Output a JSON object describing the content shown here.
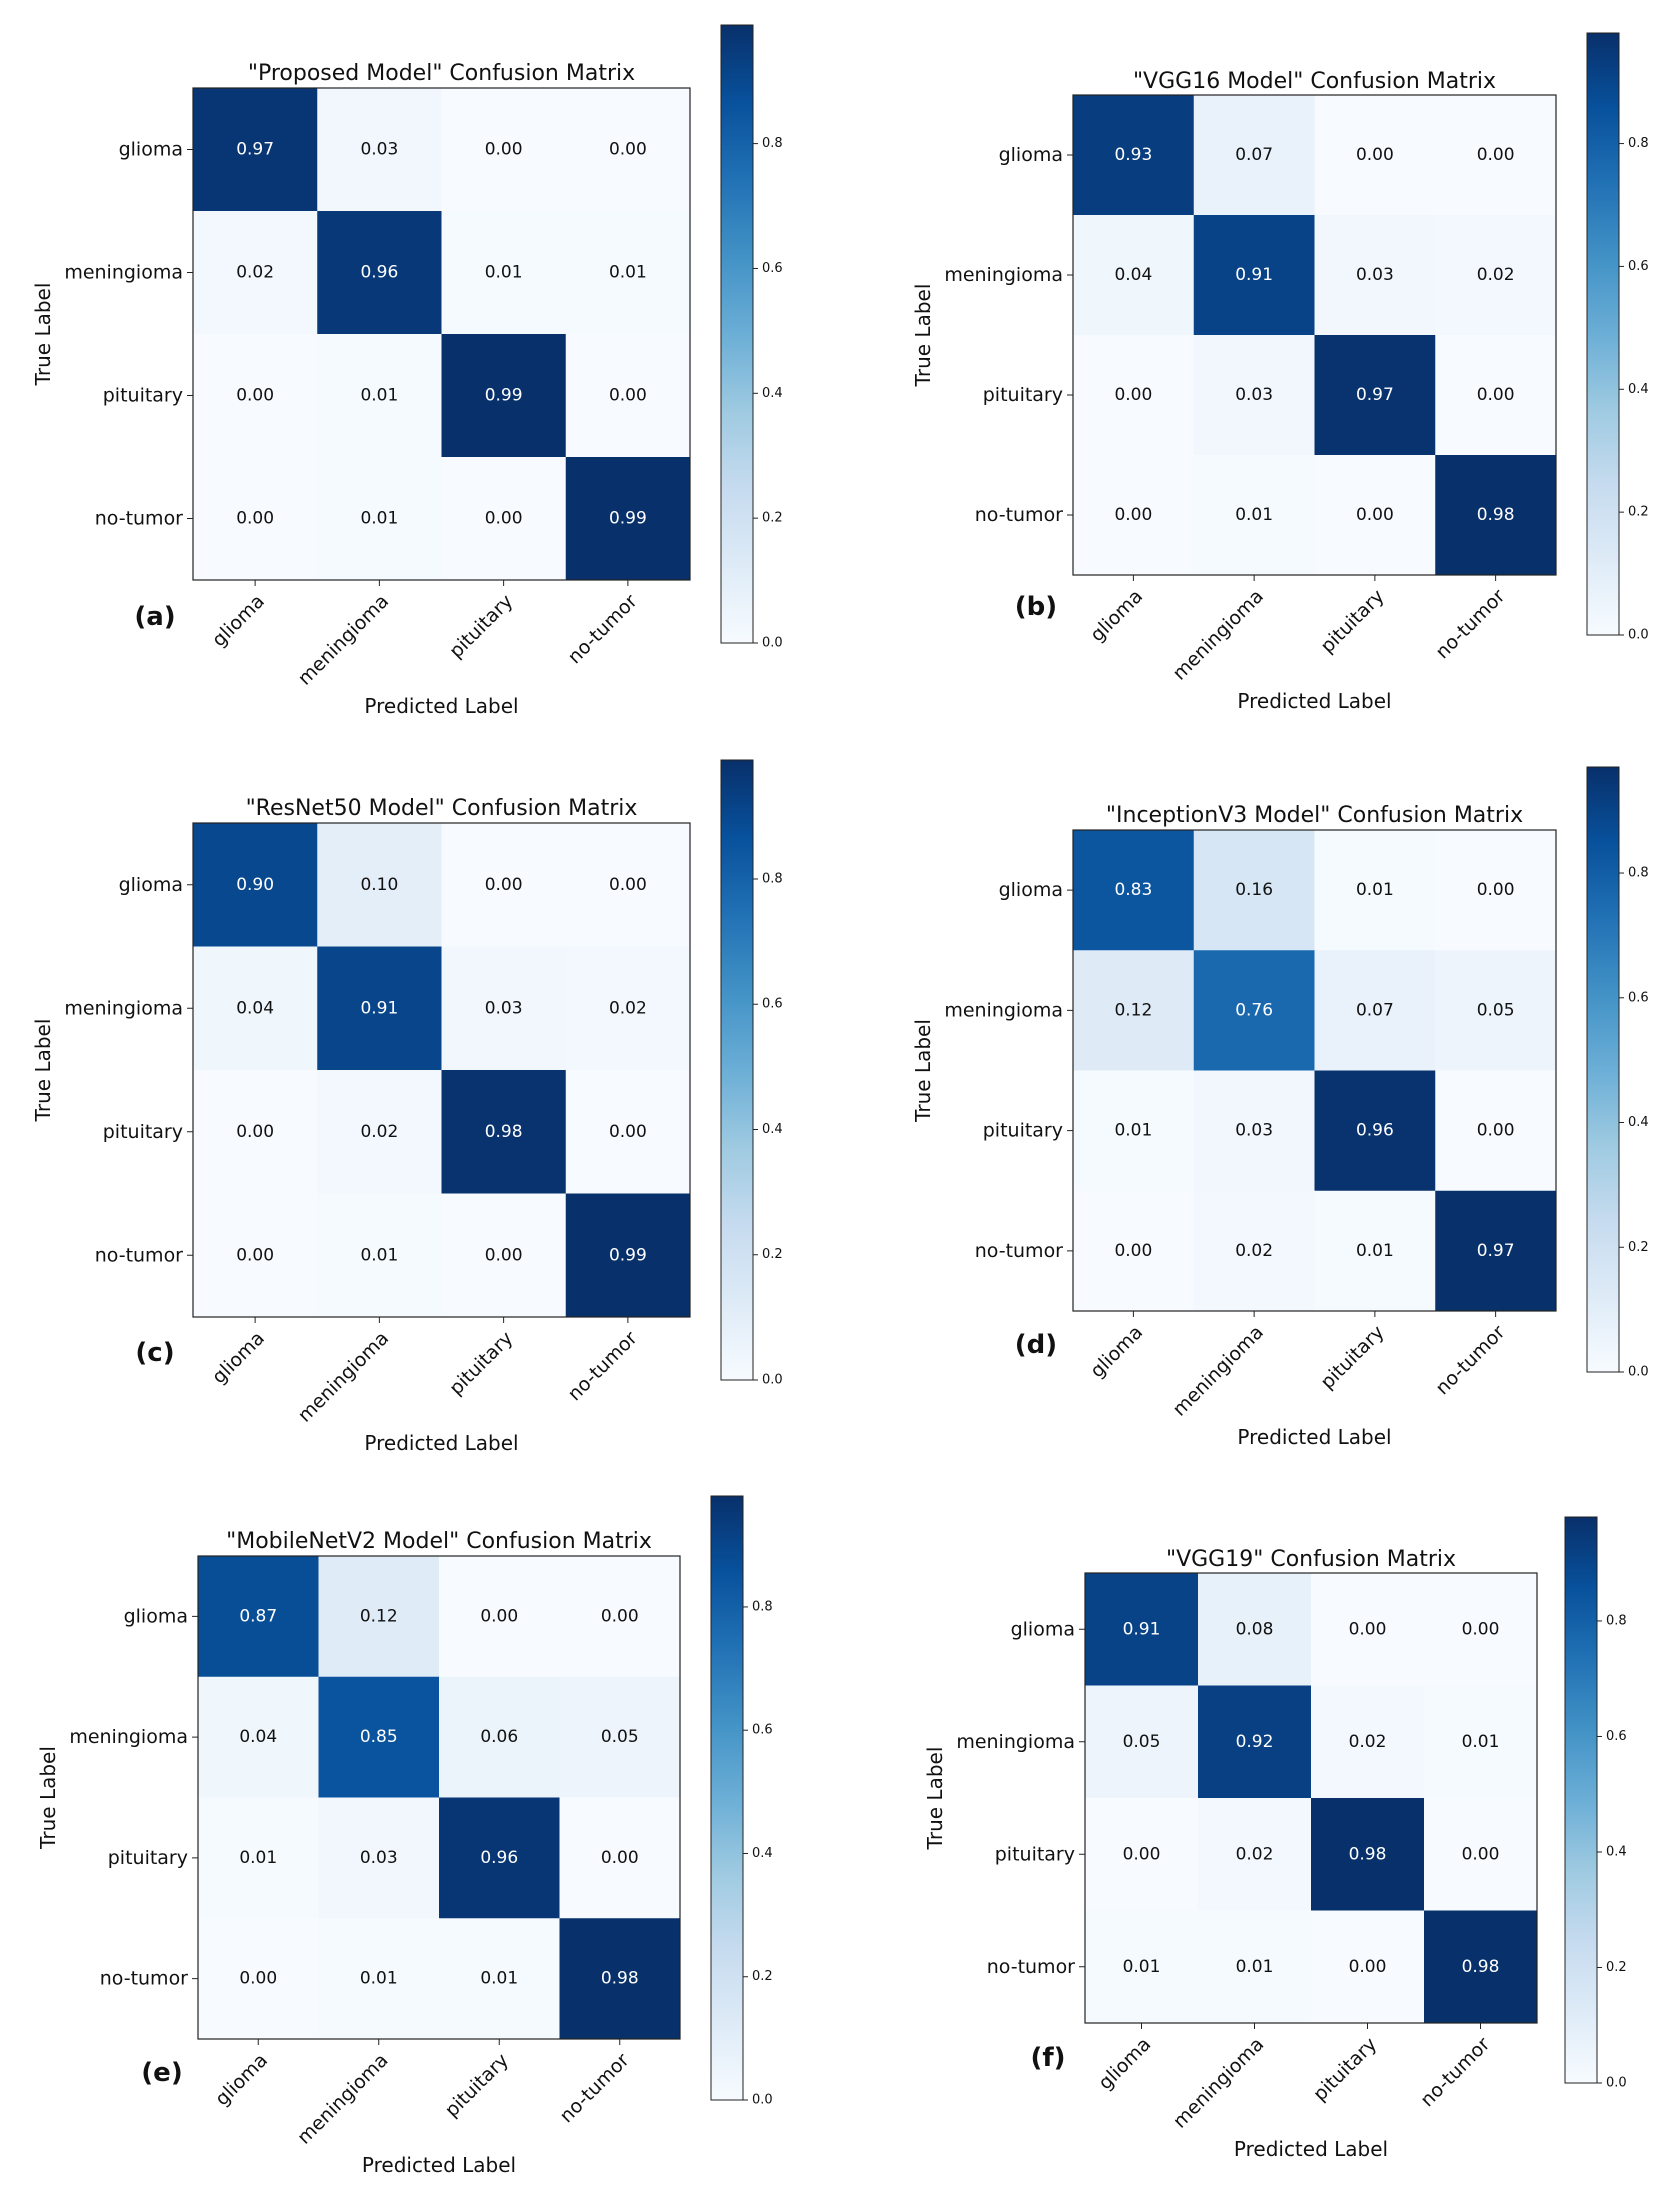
{
  "chart_data": [
    {
      "type": "heatmap",
      "panel": "(a)",
      "title": "\"Proposed Model\" Confusion Matrix",
      "xlabel": "Predicted Label",
      "ylabel": "True Label",
      "rows": [
        "glioma",
        "meningioma",
        "pituitary",
        "no-tumor"
      ],
      "columns": [
        "glioma",
        "meningioma",
        "pituitary",
        "no-tumor"
      ],
      "values": [
        [
          0.97,
          0.03,
          0.0,
          0.0
        ],
        [
          0.02,
          0.96,
          0.01,
          0.01
        ],
        [
          0.0,
          0.01,
          0.99,
          0.0
        ],
        [
          0.0,
          0.01,
          0.0,
          0.99
        ]
      ],
      "labels": [
        [
          "0.97",
          "0.03",
          "0.00",
          "0.00"
        ],
        [
          "0.02",
          "0.96",
          "0.01",
          "0.01"
        ],
        [
          "0.00",
          "0.01",
          "0.99",
          "0.00"
        ],
        [
          "0.00",
          "0.01",
          "0.00",
          "0.99"
        ]
      ],
      "colorbar": {
        "ticks": [
          0.0,
          0.2,
          0.4,
          0.6,
          0.8
        ],
        "tick_labels": [
          "0.0",
          "0.2",
          "0.4",
          "0.6",
          "0.8"
        ],
        "vmin": 0,
        "vmax": 0.99
      }
    },
    {
      "type": "heatmap",
      "panel": "(b)",
      "title": "\"VGG16 Model\" Confusion Matrix",
      "xlabel": "Predicted Label",
      "ylabel": "True Label",
      "rows": [
        "glioma",
        "meningioma",
        "pituitary",
        "no-tumor"
      ],
      "columns": [
        "glioma",
        "meningioma",
        "pituitary",
        "no-tumor"
      ],
      "values": [
        [
          0.93,
          0.07,
          0.0,
          0.0
        ],
        [
          0.04,
          0.91,
          0.03,
          0.02
        ],
        [
          0.0,
          0.03,
          0.97,
          0.0
        ],
        [
          0.0,
          0.01,
          0.0,
          0.98
        ]
      ],
      "labels": [
        [
          "0.93",
          "0.07",
          "0.00",
          "0.00"
        ],
        [
          "0.04",
          "0.91",
          "0.03",
          "0.02"
        ],
        [
          "0.00",
          "0.03",
          "0.97",
          "0.00"
        ],
        [
          "0.00",
          "0.01",
          "0.00",
          "0.98"
        ]
      ],
      "colorbar": {
        "ticks": [
          0.0,
          0.2,
          0.4,
          0.6,
          0.8
        ],
        "tick_labels": [
          "0.0",
          "0.2",
          "0.4",
          "0.6",
          "0.8"
        ],
        "vmin": 0,
        "vmax": 0.98
      }
    },
    {
      "type": "heatmap",
      "panel": "(c)",
      "title": "\"ResNet50 Model\" Confusion Matrix",
      "xlabel": "Predicted Label",
      "ylabel": "True Label",
      "rows": [
        "glioma",
        "meningioma",
        "pituitary",
        "no-tumor"
      ],
      "columns": [
        "glioma",
        "meningioma",
        "pituitary",
        "no-tumor"
      ],
      "values": [
        [
          0.9,
          0.1,
          0.0,
          0.0
        ],
        [
          0.04,
          0.91,
          0.03,
          0.02
        ],
        [
          0.0,
          0.02,
          0.98,
          0.0
        ],
        [
          0.0,
          0.01,
          0.0,
          0.99
        ]
      ],
      "labels": [
        [
          "0.90",
          "0.10",
          "0.00",
          "0.00"
        ],
        [
          "0.04",
          "0.91",
          "0.03",
          "0.02"
        ],
        [
          "0.00",
          "0.02",
          "0.98",
          "0.00"
        ],
        [
          "0.00",
          "0.01",
          "0.00",
          "0.99"
        ]
      ],
      "colorbar": {
        "ticks": [
          0.0,
          0.2,
          0.4,
          0.6,
          0.8
        ],
        "tick_labels": [
          "0.0",
          "0.2",
          "0.4",
          "0.6",
          "0.8"
        ],
        "vmin": 0,
        "vmax": 0.99
      }
    },
    {
      "type": "heatmap",
      "panel": "(d)",
      "title": "\"InceptionV3 Model\" Confusion Matrix",
      "xlabel": "Predicted Label",
      "ylabel": "True Label",
      "rows": [
        "glioma",
        "meningioma",
        "pituitary",
        "no-tumor"
      ],
      "columns": [
        "glioma",
        "meningioma",
        "pituitary",
        "no-tumor"
      ],
      "values": [
        [
          0.83,
          0.16,
          0.01,
          0.0
        ],
        [
          0.12,
          0.76,
          0.07,
          0.05
        ],
        [
          0.01,
          0.03,
          0.96,
          0.0
        ],
        [
          0.0,
          0.02,
          0.01,
          0.97
        ]
      ],
      "labels": [
        [
          "0.83",
          "0.16",
          "0.01",
          "0.00"
        ],
        [
          "0.12",
          "0.76",
          "0.07",
          "0.05"
        ],
        [
          "0.01",
          "0.03",
          "0.96",
          "0.00"
        ],
        [
          "0.00",
          "0.02",
          "0.01",
          "0.97"
        ]
      ],
      "colorbar": {
        "ticks": [
          0.0,
          0.2,
          0.4,
          0.6,
          0.8
        ],
        "tick_labels": [
          "0.0",
          "0.2",
          "0.4",
          "0.6",
          "0.8"
        ],
        "vmin": 0,
        "vmax": 0.97
      }
    },
    {
      "type": "heatmap",
      "panel": "(e)",
      "title": "\"MobileNetV2 Model\" Confusion Matrix",
      "xlabel": "Predicted Label",
      "ylabel": "True Label",
      "rows": [
        "glioma",
        "meningioma",
        "pituitary",
        "no-tumor"
      ],
      "columns": [
        "glioma",
        "meningioma",
        "pituitary",
        "no-tumor"
      ],
      "values": [
        [
          0.87,
          0.12,
          0.0,
          0.0
        ],
        [
          0.04,
          0.85,
          0.06,
          0.05
        ],
        [
          0.01,
          0.03,
          0.96,
          0.0
        ],
        [
          0.0,
          0.01,
          0.01,
          0.98
        ]
      ],
      "labels": [
        [
          "0.87",
          "0.12",
          "0.00",
          "0.00"
        ],
        [
          "0.04",
          "0.85",
          "0.06",
          "0.05"
        ],
        [
          "0.01",
          "0.03",
          "0.96",
          "0.00"
        ],
        [
          "0.00",
          "0.01",
          "0.01",
          "0.98"
        ]
      ],
      "colorbar": {
        "ticks": [
          0.0,
          0.2,
          0.4,
          0.6,
          0.8
        ],
        "tick_labels": [
          "0.0",
          "0.2",
          "0.4",
          "0.6",
          "0.8"
        ],
        "vmin": 0,
        "vmax": 0.98
      }
    },
    {
      "type": "heatmap",
      "panel": "(f)",
      "title": "\"VGG19\" Confusion Matrix",
      "xlabel": "Predicted Label",
      "ylabel": "True Label",
      "rows": [
        "glioma",
        "meningioma",
        "pituitary",
        "no-tumor"
      ],
      "columns": [
        "glioma",
        "meningioma",
        "pituitary",
        "no-tumor"
      ],
      "values": [
        [
          0.91,
          0.08,
          0.0,
          0.0
        ],
        [
          0.05,
          0.92,
          0.02,
          0.01
        ],
        [
          0.0,
          0.02,
          0.98,
          0.0
        ],
        [
          0.01,
          0.01,
          0.0,
          0.98
        ]
      ],
      "labels": [
        [
          "0.91",
          "0.08",
          "0.00",
          "0.00"
        ],
        [
          "0.05",
          "0.92",
          "0.02",
          "0.01"
        ],
        [
          "0.00",
          "0.02",
          "0.98",
          "0.00"
        ],
        [
          "0.01",
          "0.01",
          "0.00",
          "0.98"
        ]
      ],
      "colorbar": {
        "ticks": [
          0.0,
          0.2,
          0.4,
          0.6,
          0.8
        ],
        "tick_labels": [
          "0.0",
          "0.2",
          "0.4",
          "0.6",
          "0.8"
        ],
        "vmin": 0,
        "vmax": 0.98
      }
    }
  ]
}
